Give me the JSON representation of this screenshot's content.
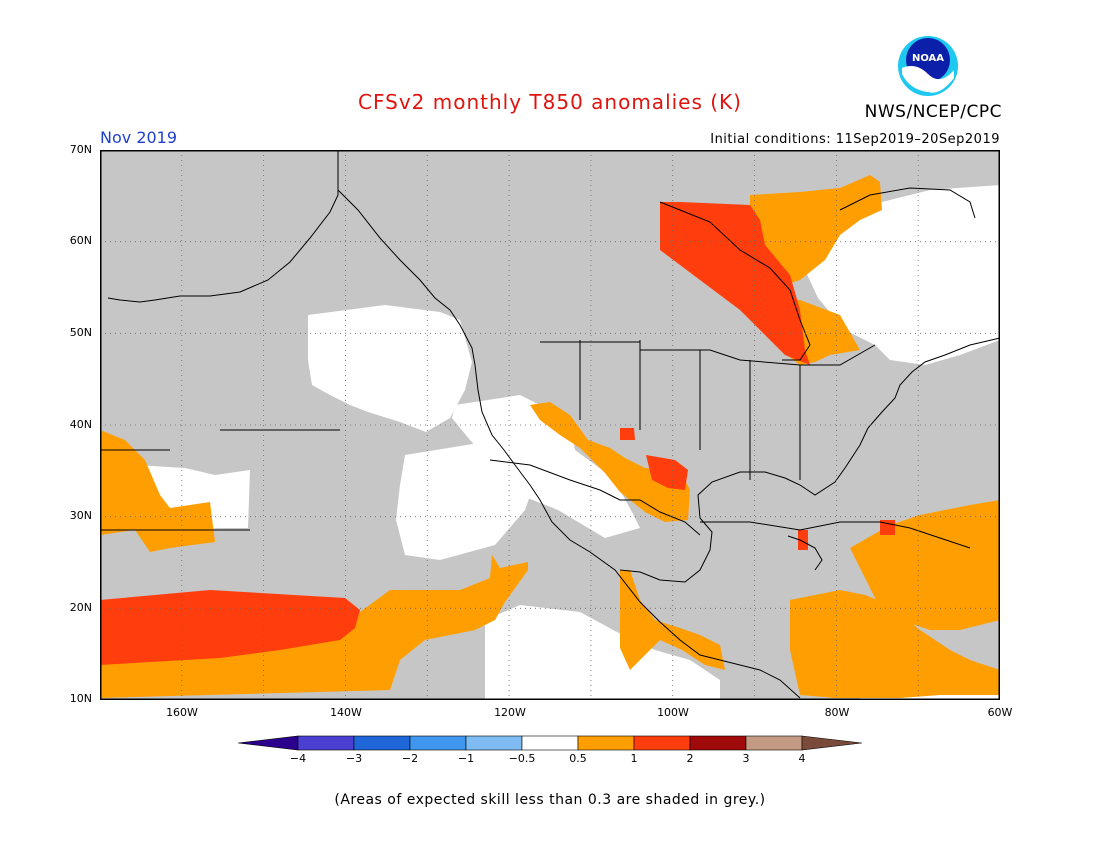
{
  "title": "CFSv2 monthly T850 anomalies (K)",
  "agency": "NWS/NCEP/CPC",
  "logo_text": "NOAA",
  "valid_month": "Nov 2019",
  "initial_conditions": "Initial conditions: 11Sep2019–20Sep2019",
  "footnote": "(Areas of expected skill less than 0.3 are shaded in grey.)",
  "map": {
    "projection": "cylindrical equidistant",
    "lon_range": [
      -170,
      -60
    ],
    "lat_range": [
      10,
      70
    ],
    "lat_labels": [
      "70N",
      "60N",
      "50N",
      "40N",
      "30N",
      "20N",
      "10N"
    ],
    "lon_labels": [
      "160W",
      "140W",
      "120W",
      "100W",
      "80W",
      "60W"
    ],
    "gridlines": "dotted",
    "colors": {
      "low_skill_grey": "#c6c6c6",
      "anom_0p5_1": "#ff9e00",
      "anom_1_2": "#ff3d0d",
      "near_zero": "#ffffff",
      "coast": "#000000"
    }
  },
  "colorbar": {
    "labels": [
      "−4",
      "−3",
      "−2",
      "−1",
      "−0.5",
      "0.5",
      "1",
      "2",
      "3",
      "4"
    ],
    "colors": [
      "#2a008c",
      "#4b3fd1",
      "#1f66d8",
      "#3f96ee",
      "#7ebcf3",
      "#ffffff",
      "#ff9e00",
      "#ff3d0d",
      "#a00a0a",
      "#c49a84",
      "#7a4b3a"
    ]
  }
}
